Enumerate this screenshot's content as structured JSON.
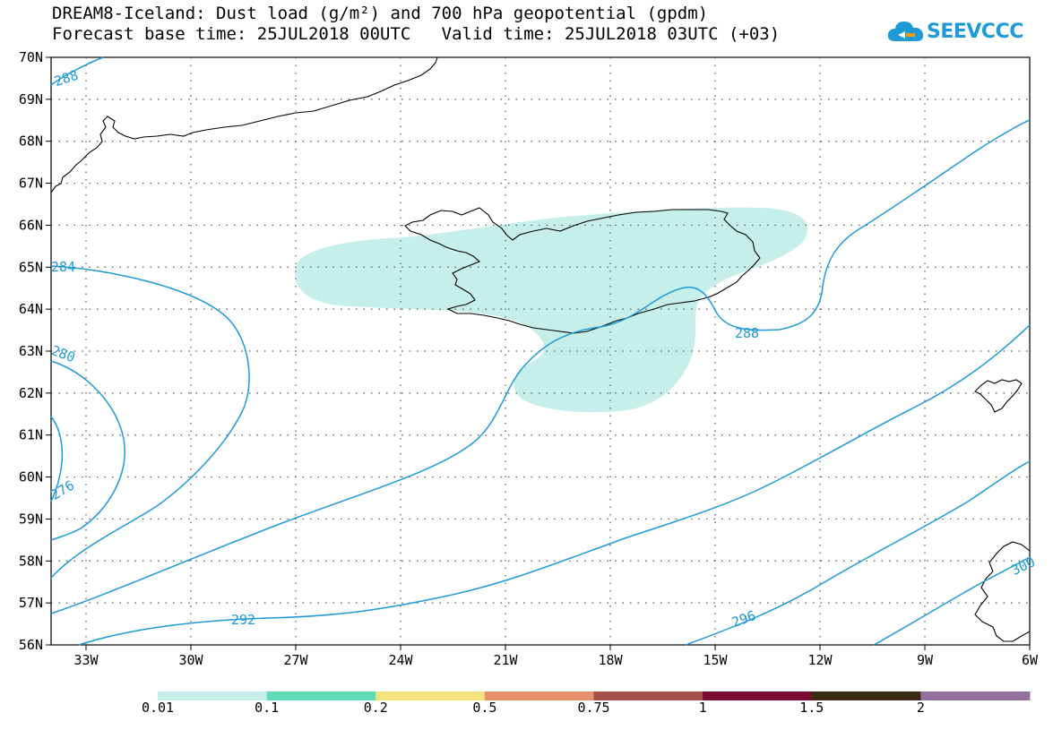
{
  "title": {
    "line1": "DREAM8-Iceland: Dust load (g/m²) and 700 hPa geopotential (gpdm)",
    "line2": "Forecast base time: 25JUL2018 00UTC   Valid time: 25JUL2018 03UTC (+03)"
  },
  "logo": {
    "text": "SEEVCCC",
    "icon": "cloud-icon",
    "color": "#1e9ad6"
  },
  "map": {
    "lon_range": [
      -34,
      -6
    ],
    "lat_range": [
      56,
      70
    ],
    "lon_ticks": [
      {
        "value": -33,
        "label": "33W"
      },
      {
        "value": -30,
        "label": "30W"
      },
      {
        "value": -27,
        "label": "27W"
      },
      {
        "value": -24,
        "label": "24W"
      },
      {
        "value": -21,
        "label": "21W"
      },
      {
        "value": -18,
        "label": "18W"
      },
      {
        "value": -15,
        "label": "15W"
      },
      {
        "value": -12,
        "label": "12W"
      },
      {
        "value": -9,
        "label": "9W"
      },
      {
        "value": -6,
        "label": "6W"
      }
    ],
    "lat_ticks": [
      {
        "value": 56,
        "label": "56N"
      },
      {
        "value": 57,
        "label": "57N"
      },
      {
        "value": 58,
        "label": "58N"
      },
      {
        "value": 59,
        "label": "59N"
      },
      {
        "value": 60,
        "label": "60N"
      },
      {
        "value": 61,
        "label": "61N"
      },
      {
        "value": 62,
        "label": "62N"
      },
      {
        "value": 63,
        "label": "63N"
      },
      {
        "value": 64,
        "label": "64N"
      },
      {
        "value": 65,
        "label": "65N"
      },
      {
        "value": 66,
        "label": "66N"
      },
      {
        "value": 67,
        "label": "67N"
      },
      {
        "value": 68,
        "label": "68N"
      },
      {
        "value": 69,
        "label": "69N"
      },
      {
        "value": 70,
        "label": "70N"
      }
    ],
    "contour_color": "#1e9ad6",
    "coast_color": "#000000",
    "dust_fill_color": "#c6efe9",
    "contour_labels": [
      "288",
      "284",
      "280",
      "276",
      "288",
      "292",
      "296",
      "300"
    ]
  },
  "colorbar": {
    "bins": [
      {
        "color": "#c6efe9"
      },
      {
        "color": "#5fdbb5"
      },
      {
        "color": "#f2e37e"
      },
      {
        "color": "#e8906e"
      },
      {
        "color": "#a6504a"
      },
      {
        "color": "#7b0c2f"
      },
      {
        "color": "#3d2a14"
      },
      {
        "color": "#94709e"
      }
    ],
    "labels": [
      "0.01",
      "0.1",
      "0.2",
      "0.5",
      "0.75",
      "1",
      "1.5",
      "2"
    ]
  }
}
